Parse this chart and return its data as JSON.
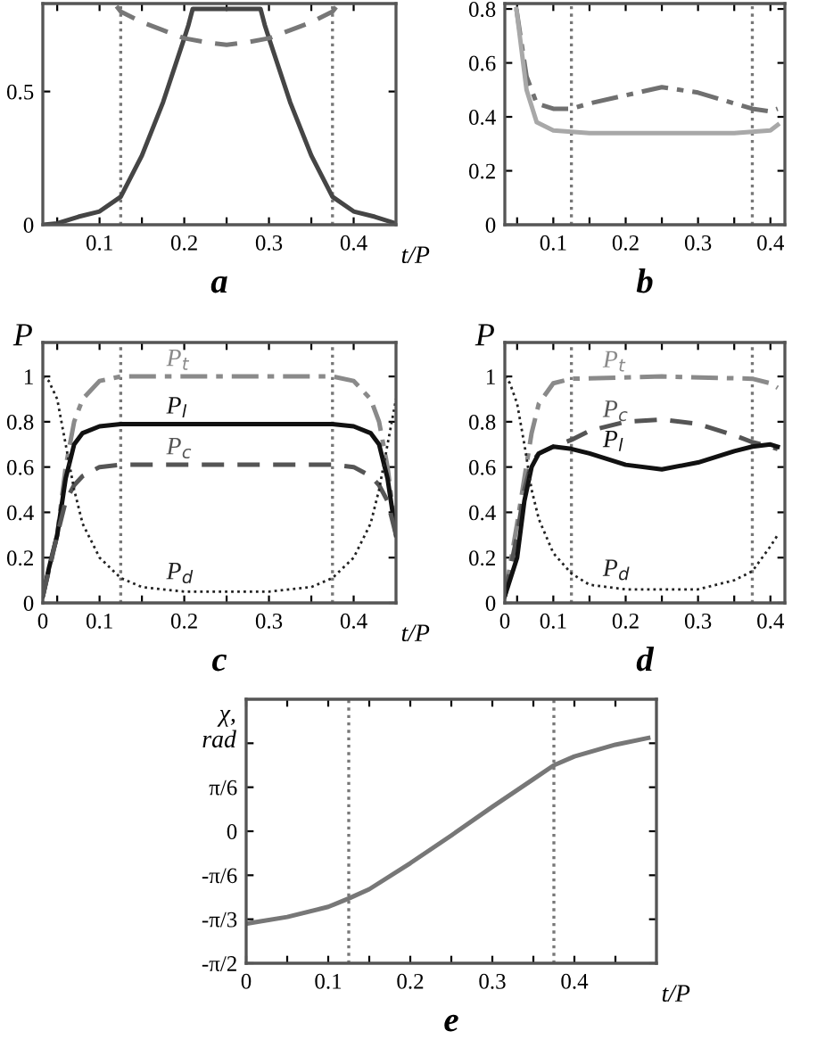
{
  "chart_data": [
    {
      "type": "line",
      "xlabel": "t/P",
      "annotations": [
        "a"
      ],
      "xlim": [
        0.033,
        0.45
      ],
      "ylim": [
        0,
        0.83
      ],
      "xticks": [
        {
          "value": 0.05,
          "label": null
        },
        0.1,
        {
          "value": 0.15,
          "label": null
        },
        0.2,
        {
          "value": 0.25,
          "label": null
        },
        0.3,
        {
          "value": 0.35,
          "label": null
        },
        0.4
      ],
      "yticks": [
        0,
        0.5
      ],
      "grid": false,
      "legend": false,
      "ref_lines": [
        {
          "axis": "x",
          "value": 0.125,
          "color": "#777777",
          "line_style": "dotted"
        },
        {
          "axis": "x",
          "value": 0.375,
          "color": "#777777",
          "line_style": "dotted"
        }
      ],
      "series": [
        {
          "color": "#454545",
          "line_style": "solid",
          "x": [
            0.033,
            0.05,
            0.075,
            0.1,
            0.125,
            0.15,
            0.175,
            0.2,
            0.205,
            0.21,
            0.29,
            0.295,
            0.3,
            0.325,
            0.35,
            0.375,
            0.4,
            0.425,
            0.45
          ],
          "values": [
            0,
            0.005,
            0.03,
            0.05,
            0.105,
            0.26,
            0.46,
            0.7,
            0.75,
            0.81,
            0.81,
            0.75,
            0.7,
            0.46,
            0.26,
            0.105,
            0.05,
            0.03,
            0.005
          ]
        },
        {
          "color": "#777777",
          "line_style": "dashed",
          "x": [
            0.12,
            0.125,
            0.15,
            0.175,
            0.2,
            0.225,
            0.25,
            0.275,
            0.3,
            0.325,
            0.35,
            0.375,
            0.38
          ],
          "values": [
            0.82,
            0.8,
            0.76,
            0.73,
            0.7,
            0.685,
            0.675,
            0.685,
            0.7,
            0.73,
            0.76,
            0.8,
            0.82
          ]
        }
      ]
    },
    {
      "type": "line",
      "annotations": [
        "b"
      ],
      "xlim": [
        0.033,
        0.42
      ],
      "ylim": [
        0,
        0.82
      ],
      "xticks": [
        {
          "value": 0.05,
          "label": null
        },
        0.1,
        {
          "value": 0.15,
          "label": null
        },
        0.2,
        {
          "value": 0.25,
          "label": null
        },
        0.3,
        {
          "value": 0.35,
          "label": null
        },
        0.4
      ],
      "yticks": [
        0,
        0.2,
        0.4,
        0.6,
        0.8
      ],
      "grid": false,
      "legend": false,
      "ref_lines": [
        {
          "axis": "x",
          "value": 0.125,
          "color": "#777777",
          "line_style": "dotted"
        },
        {
          "axis": "x",
          "value": 0.375,
          "color": "#777777",
          "line_style": "dotted"
        }
      ],
      "series": [
        {
          "color": "#707070",
          "line_style": "dashdot",
          "x": [
            0.049,
            0.063,
            0.077,
            0.1,
            0.125,
            0.15,
            0.2,
            0.25,
            0.3,
            0.35,
            0.375,
            0.4,
            0.41
          ],
          "values": [
            0.8,
            0.55,
            0.45,
            0.43,
            0.43,
            0.45,
            0.48,
            0.51,
            0.49,
            0.45,
            0.43,
            0.42,
            0.43
          ]
        },
        {
          "color": "#a8a8a8",
          "line_style": "solid",
          "x": [
            0.049,
            0.063,
            0.077,
            0.1,
            0.125,
            0.15,
            0.2,
            0.25,
            0.3,
            0.35,
            0.375,
            0.4,
            0.41
          ],
          "values": [
            0.8,
            0.5,
            0.38,
            0.35,
            0.345,
            0.34,
            0.34,
            0.34,
            0.34,
            0.34,
            0.345,
            0.35,
            0.37
          ]
        }
      ]
    },
    {
      "type": "line",
      "xlabel": "t/P",
      "ylabel": "P",
      "annotations": [
        "c"
      ],
      "xlim": [
        0.033,
        0.45
      ],
      "ylim": [
        0,
        1.15
      ],
      "xticks": [
        {
          "value": 0.033,
          "label": "0"
        },
        {
          "value": 0.05,
          "label": null
        },
        0.1,
        {
          "value": 0.15,
          "label": null
        },
        0.2,
        {
          "value": 0.25,
          "label": null
        },
        0.3,
        {
          "value": 0.35,
          "label": null
        },
        0.4
      ],
      "yticks": [
        0,
        0.2,
        0.4,
        0.6,
        0.8,
        1
      ],
      "grid": false,
      "legend": false,
      "ref_lines": [
        {
          "axis": "x",
          "value": 0.125,
          "color": "#777777",
          "line_style": "dotted"
        },
        {
          "axis": "x",
          "value": 0.375,
          "color": "#777777",
          "line_style": "dotted"
        }
      ],
      "series": [
        {
          "name": "P$_{t}$",
          "color": "#8a8a8a",
          "line_style": "dashdot",
          "x": [
            0.033,
            0.05,
            0.06,
            0.07,
            0.08,
            0.1,
            0.125,
            0.25,
            0.375,
            0.4,
            0.42,
            0.43,
            0.44,
            0.45
          ],
          "values": [
            0.03,
            0.3,
            0.6,
            0.8,
            0.9,
            0.98,
            1.0,
            1.0,
            1.0,
            0.98,
            0.9,
            0.8,
            0.6,
            0.3
          ]
        },
        {
          "name": "P$_{l}$",
          "color": "#111111",
          "line_style": "solid",
          "x": [
            0.033,
            0.04,
            0.05,
            0.06,
            0.07,
            0.08,
            0.1,
            0.125,
            0.25,
            0.375,
            0.4,
            0.42,
            0.43,
            0.44,
            0.45
          ],
          "values": [
            0.03,
            0.15,
            0.3,
            0.55,
            0.7,
            0.75,
            0.78,
            0.79,
            0.79,
            0.79,
            0.78,
            0.75,
            0.7,
            0.55,
            0.3
          ]
        },
        {
          "name": "P$_{c}$",
          "color": "#555555",
          "line_style": "dashed",
          "x": [
            0.033,
            0.05,
            0.06,
            0.07,
            0.08,
            0.1,
            0.125,
            0.25,
            0.375,
            0.4,
            0.42,
            0.43,
            0.44,
            0.45
          ],
          "values": [
            0.03,
            0.3,
            0.45,
            0.52,
            0.56,
            0.6,
            0.61,
            0.61,
            0.61,
            0.6,
            0.56,
            0.52,
            0.45,
            0.3
          ]
        },
        {
          "name": "P$_{d}$",
          "color": "#222222",
          "line_style": "dotted",
          "x": [
            0.033,
            0.04,
            0.05,
            0.06,
            0.07,
            0.08,
            0.1,
            0.125,
            0.15,
            0.2,
            0.25,
            0.3,
            0.35,
            0.375,
            0.4,
            0.42,
            0.43,
            0.44,
            0.45
          ],
          "values": [
            1.0,
            0.98,
            0.9,
            0.7,
            0.5,
            0.35,
            0.2,
            0.11,
            0.07,
            0.05,
            0.05,
            0.05,
            0.07,
            0.11,
            0.2,
            0.35,
            0.5,
            0.7,
            0.9
          ]
        }
      ]
    },
    {
      "type": "line",
      "ylabel": "P",
      "annotations": [
        "d"
      ],
      "xlim": [
        0.033,
        0.42
      ],
      "ylim": [
        0,
        1.15
      ],
      "xticks": [
        {
          "value": 0.033,
          "label": "0"
        },
        {
          "value": 0.05,
          "label": null
        },
        0.1,
        {
          "value": 0.15,
          "label": null
        },
        0.2,
        {
          "value": 0.25,
          "label": null
        },
        0.3,
        {
          "value": 0.35,
          "label": null
        },
        0.4
      ],
      "yticks": [
        0,
        0.2,
        0.4,
        0.6,
        0.8,
        1
      ],
      "grid": false,
      "legend": false,
      "ref_lines": [
        {
          "axis": "x",
          "value": 0.125,
          "color": "#777777",
          "line_style": "dotted"
        },
        {
          "axis": "x",
          "value": 0.375,
          "color": "#777777",
          "line_style": "dotted"
        }
      ],
      "series": [
        {
          "name": "P$_{t}$",
          "color": "#8a8a8a",
          "line_style": "dashdot",
          "x": [
            0.033,
            0.05,
            0.06,
            0.07,
            0.08,
            0.1,
            0.125,
            0.25,
            0.375,
            0.4,
            0.41
          ],
          "values": [
            0.03,
            0.35,
            0.55,
            0.75,
            0.88,
            0.97,
            0.99,
            1.0,
            0.99,
            0.97,
            0.95
          ]
        },
        {
          "name": "P$_{c}$",
          "color": "#555555",
          "line_style": "dashed",
          "x": [
            0.033,
            0.05,
            0.06,
            0.07,
            0.08,
            0.1,
            0.125,
            0.15,
            0.2,
            0.25,
            0.3,
            0.35,
            0.375,
            0.4,
            0.41
          ],
          "values": [
            0.03,
            0.3,
            0.5,
            0.62,
            0.66,
            0.69,
            0.72,
            0.76,
            0.8,
            0.81,
            0.79,
            0.74,
            0.71,
            0.69,
            0.68
          ]
        },
        {
          "name": "P$_{l}$",
          "color": "#111111",
          "line_style": "solid",
          "x": [
            0.033,
            0.05,
            0.06,
            0.07,
            0.08,
            0.1,
            0.125,
            0.15,
            0.2,
            0.25,
            0.3,
            0.35,
            0.375,
            0.4,
            0.41
          ],
          "values": [
            0.03,
            0.2,
            0.45,
            0.6,
            0.66,
            0.69,
            0.68,
            0.66,
            0.61,
            0.59,
            0.62,
            0.67,
            0.69,
            0.7,
            0.69
          ]
        },
        {
          "name": "P$_{d}$",
          "color": "#222222",
          "line_style": "dotted",
          "x": [
            0.033,
            0.04,
            0.05,
            0.06,
            0.07,
            0.08,
            0.1,
            0.125,
            0.15,
            0.2,
            0.25,
            0.3,
            0.35,
            0.375,
            0.4,
            0.41
          ],
          "values": [
            1.0,
            0.97,
            0.88,
            0.7,
            0.5,
            0.37,
            0.22,
            0.13,
            0.08,
            0.06,
            0.06,
            0.06,
            0.1,
            0.14,
            0.25,
            0.3
          ]
        }
      ]
    },
    {
      "type": "line",
      "xlabel": "t/P",
      "ylabel": "χ,\nrad",
      "annotations": [
        "e"
      ],
      "xlim": [
        0,
        0.5
      ],
      "ylim": [
        -1.5708,
        1.5708
      ],
      "xticks": [
        0,
        {
          "value": 0.05,
          "label": null
        },
        0.1,
        {
          "value": 0.15,
          "label": null
        },
        0.2,
        {
          "value": 0.25,
          "label": null
        },
        0.3,
        {
          "value": 0.35,
          "label": null
        },
        0.4,
        {
          "value": 0.45,
          "label": null
        }
      ],
      "yticks": [
        {
          "value": -1.5708,
          "label": "-π/2"
        },
        {
          "value": -1.0472,
          "label": "-π/3"
        },
        {
          "value": -0.5236,
          "label": "-π/6"
        },
        0,
        {
          "value": 0.5236,
          "label": "π/6"
        },
        {
          "value": 1.0472,
          "label": null
        }
      ],
      "grid": false,
      "legend": false,
      "ref_lines": [
        {
          "axis": "x",
          "value": 0.125,
          "color": "#777777",
          "line_style": "dotted"
        },
        {
          "axis": "x",
          "value": 0.375,
          "color": "#777777",
          "line_style": "dotted"
        }
      ],
      "series": [
        {
          "color": "#777777",
          "line_style": "solid",
          "x": [
            0,
            0.05,
            0.1,
            0.125,
            0.15,
            0.2,
            0.25,
            0.3,
            0.35,
            0.375,
            0.4,
            0.45,
            0.49
          ],
          "values": [
            -1.1,
            -1.02,
            -0.9,
            -0.8,
            -0.69,
            -0.38,
            -0.05,
            0.29,
            0.62,
            0.785,
            0.89,
            1.03,
            1.11
          ]
        }
      ]
    }
  ]
}
